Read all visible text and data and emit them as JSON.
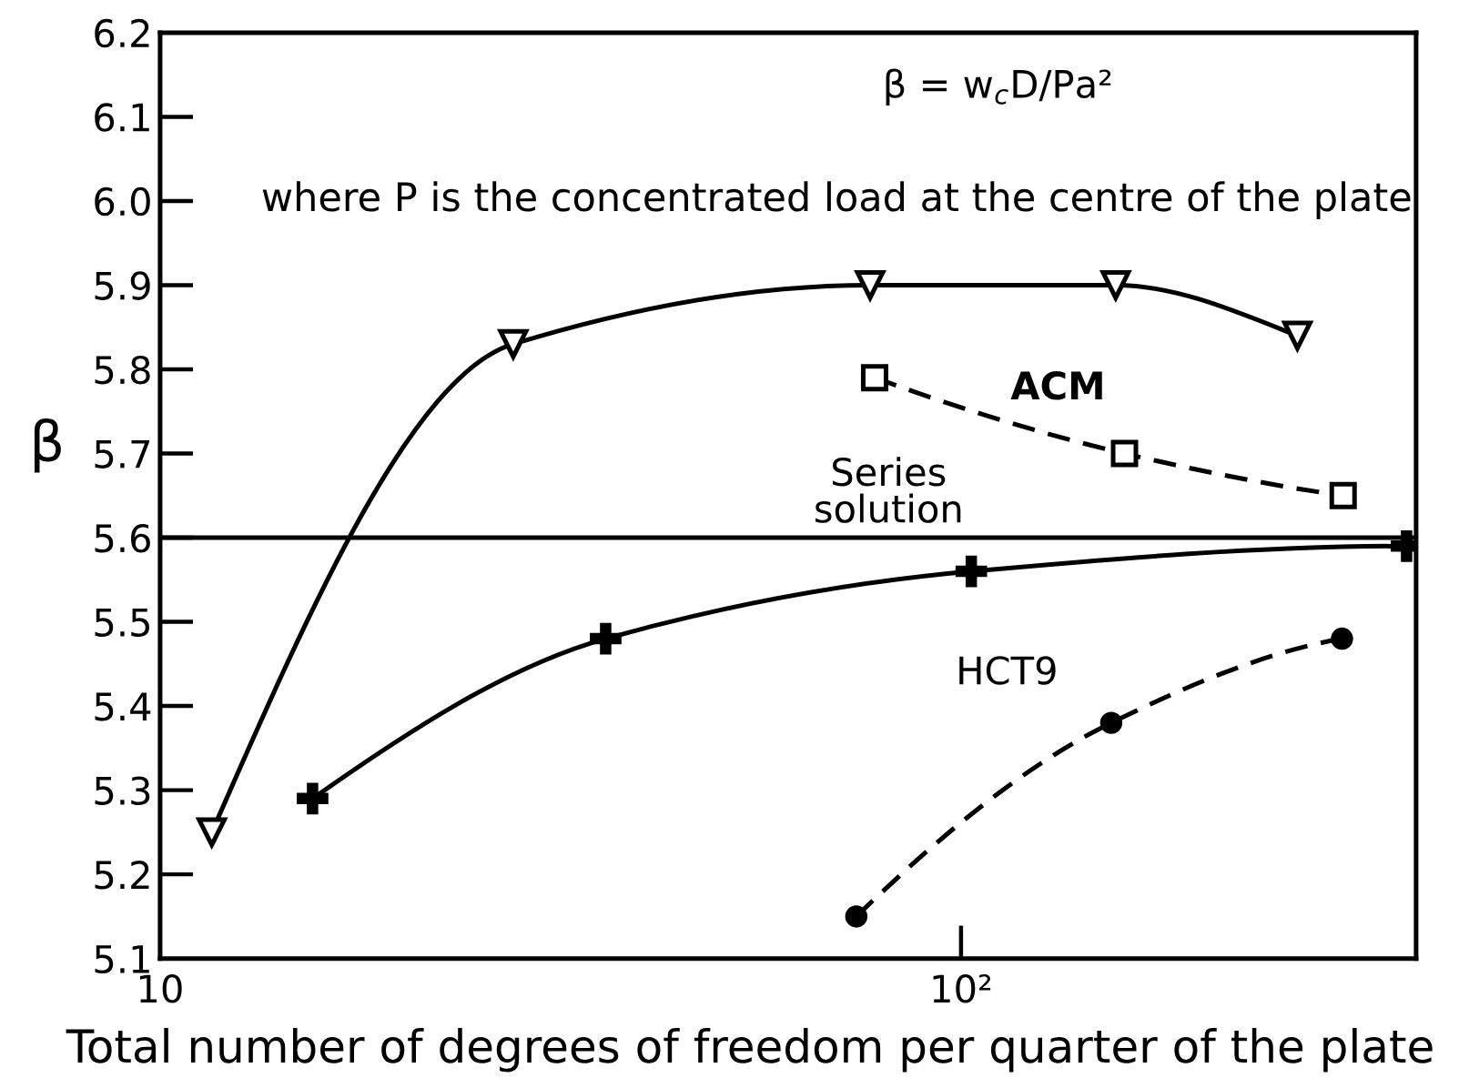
{
  "chart_data": {
    "type": "line",
    "xlabel": "Total number of degrees of freedom per quarter of the plate",
    "ylabel": "β",
    "annotations": [
      "β = w$_{c}$D/Pa²",
      "where P is the concentrated load at the centre of the plate"
    ],
    "log": "x",
    "xlim": [
      10,
      370
    ],
    "xticks": [
      {
        "value": 10,
        "label": "10"
      },
      {
        "value": 100,
        "label": "10²"
      }
    ],
    "ylim": [
      5.1,
      6.2
    ],
    "yticks": [
      5.1,
      5.2,
      5.3,
      5.4,
      5.5,
      5.6,
      5.7,
      5.8,
      5.9,
      {
        "value": 6,
        "label": "6.0"
      },
      6.1,
      6.2
    ],
    "ref_lines": [
      {
        "axis": "y",
        "value": 5.6,
        "label": "Series solution",
        "color": "#000000",
        "line_style": "solid"
      }
    ],
    "series": [
      {
        "color": "#000000",
        "marker": "triangle",
        "line_style": "solid",
        "x": [
          11.6,
          27.6,
          77,
          156,
          263
        ],
        "values": [
          5.25,
          5.83,
          5.9,
          5.9,
          5.84
        ]
      },
      {
        "name": "ACM",
        "color": "#000000",
        "marker": "square",
        "line_style": "dashed",
        "x": [
          78,
          160,
          300
        ],
        "values": [
          5.79,
          5.7,
          5.65
        ]
      },
      {
        "color": "#000000",
        "marker": "cross",
        "line_style": "solid",
        "x": [
          15.5,
          36,
          103,
          360
        ],
        "values": [
          5.29,
          5.48,
          5.56,
          5.59
        ]
      },
      {
        "name": "HCT9",
        "color": "#000000",
        "marker": "circle",
        "line_style": "dashed",
        "x": [
          74,
          154,
          299
        ],
        "values": [
          5.15,
          5.38,
          5.48
        ]
      }
    ]
  }
}
